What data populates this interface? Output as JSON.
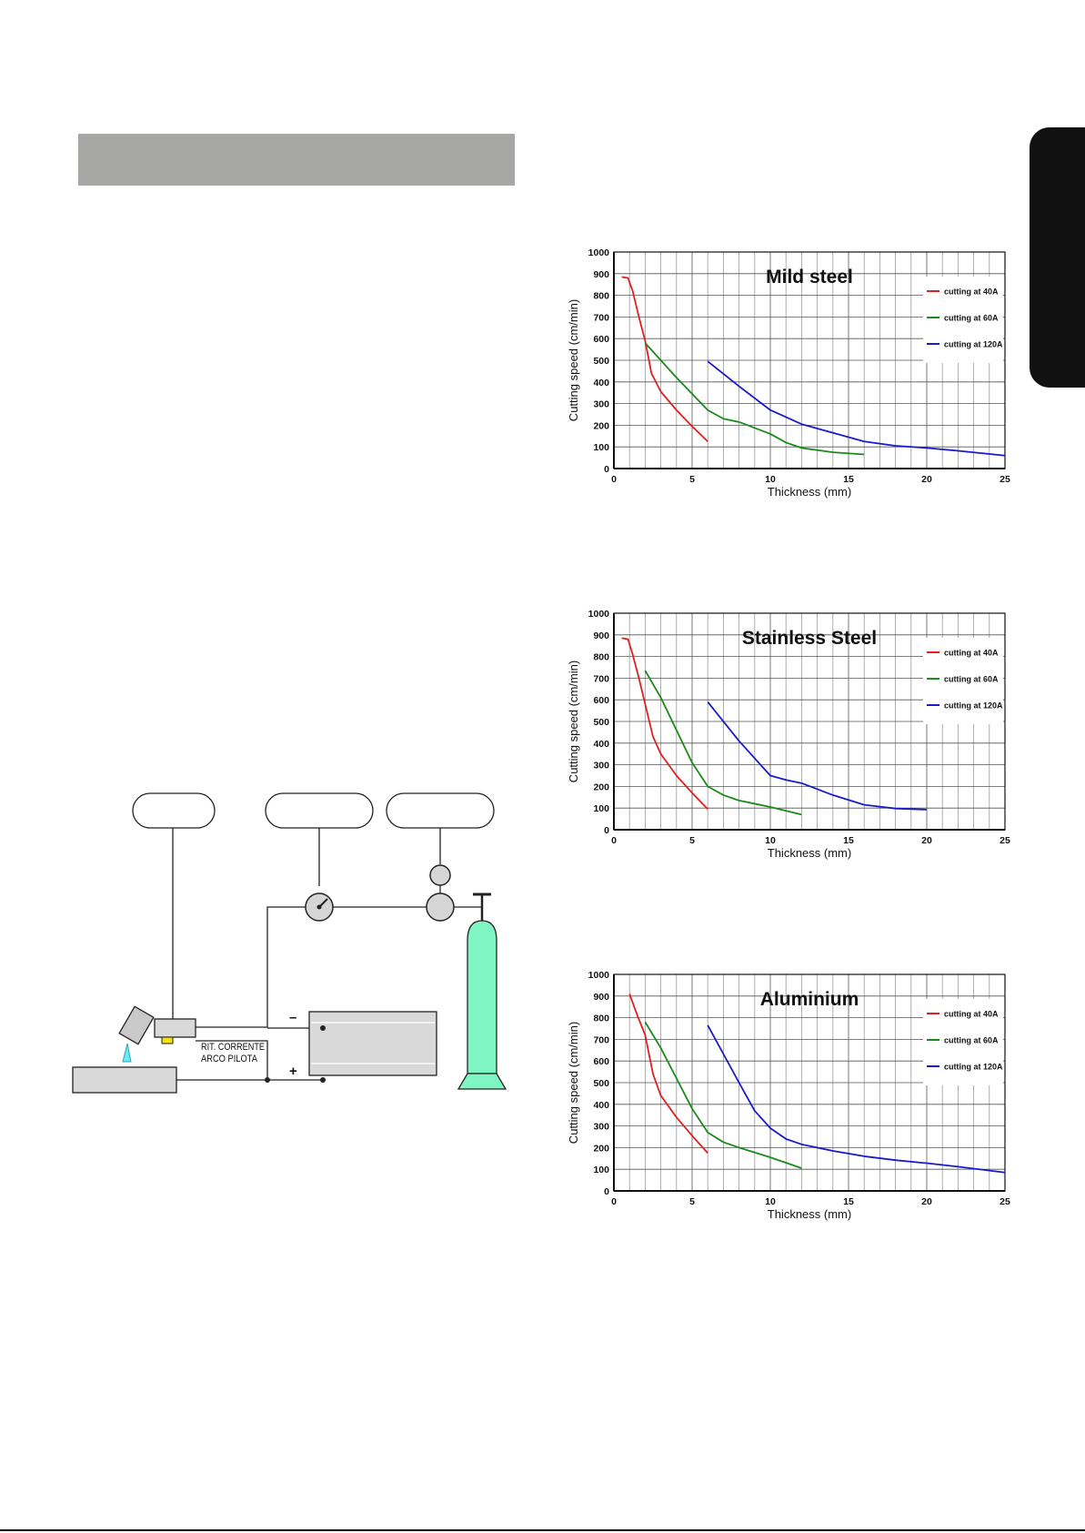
{
  "diagram": {
    "label_line1": "RIT. CORRENTE",
    "label_line2": "ARCO PILOTA",
    "minus_sign": "–",
    "plus_sign": "+",
    "gas_color": "#7ff5c4"
  },
  "chart_data": [
    {
      "type": "line",
      "title": "Mild steel",
      "xlabel": "Thickness (mm)",
      "ylabel": "Cutting speed (cm/min)",
      "xlim": [
        0,
        25
      ],
      "ylim": [
        0,
        1000
      ],
      "xticks": [
        "0",
        "5",
        "10",
        "15",
        "20",
        "25"
      ],
      "yticks": [
        "0",
        "100",
        "200",
        "300",
        "400",
        "500",
        "600",
        "700",
        "800",
        "900",
        "1000"
      ],
      "grid": true,
      "legend_position": "top-right",
      "series": [
        {
          "name": "cutting at 40A",
          "color": "#e02020",
          "x": [
            0.5,
            0.9,
            1.2,
            1.6,
            2.0,
            2.4,
            3.0,
            4.0,
            5.0,
            6.0
          ],
          "y": [
            885,
            880,
            820,
            700,
            590,
            440,
            355,
            270,
            195,
            125
          ]
        },
        {
          "name": "cutting at 60A",
          "color": "#1a8a1a",
          "x": [
            2.0,
            3.0,
            4.0,
            5.0,
            6.0,
            7.0,
            8.0,
            10.0,
            11.0,
            12.0,
            14.0,
            16.0
          ],
          "y": [
            580,
            500,
            420,
            345,
            270,
            230,
            215,
            160,
            120,
            95,
            75,
            65
          ]
        },
        {
          "name": "cutting at 120A",
          "color": "#1a1acc",
          "x": [
            6.0,
            8.0,
            10.0,
            12.0,
            14.0,
            16.0,
            18.0,
            20.0,
            22.0,
            25.0
          ],
          "y": [
            495,
            380,
            270,
            205,
            165,
            125,
            105,
            95,
            82,
            60
          ]
        }
      ]
    },
    {
      "type": "line",
      "title": "Stainless Steel",
      "xlabel": "Thickness (mm)",
      "ylabel": "Cutting speed (cm/min)",
      "xlim": [
        0,
        25
      ],
      "ylim": [
        0,
        1000
      ],
      "xticks": [
        "0",
        "5",
        "10",
        "15",
        "20",
        "25"
      ],
      "yticks": [
        "0",
        "100",
        "200",
        "300",
        "400",
        "500",
        "600",
        "700",
        "800",
        "900",
        "1000"
      ],
      "grid": true,
      "legend_position": "top-right",
      "series": [
        {
          "name": "cutting at 40A",
          "color": "#e02020",
          "x": [
            0.5,
            0.9,
            1.2,
            1.6,
            2.0,
            2.5,
            3.0,
            4.0,
            5.0,
            6.0
          ],
          "y": [
            885,
            880,
            810,
            700,
            580,
            430,
            350,
            250,
            170,
            95
          ]
        },
        {
          "name": "cutting at 60A",
          "color": "#1a8a1a",
          "x": [
            2.0,
            3.0,
            4.0,
            5.0,
            6.0,
            7.0,
            8.0,
            9.0,
            10.0,
            12.0
          ],
          "y": [
            735,
            610,
            460,
            310,
            200,
            160,
            135,
            120,
            105,
            70
          ]
        },
        {
          "name": "cutting at 120A",
          "color": "#1a1acc",
          "x": [
            6.0,
            8.0,
            10.0,
            11.0,
            12.0,
            14.0,
            16.0,
            18.0,
            20.0
          ],
          "y": [
            590,
            410,
            250,
            230,
            215,
            160,
            115,
            98,
            93
          ]
        }
      ]
    },
    {
      "type": "line",
      "title": "Aluminium",
      "xlabel": "Thickness (mm)",
      "ylabel": "Cutting speed (cm/min)",
      "xlim": [
        0,
        25
      ],
      "ylim": [
        0,
        1000
      ],
      "xticks": [
        "0",
        "5",
        "10",
        "15",
        "20",
        "25"
      ],
      "yticks": [
        "0",
        "100",
        "200",
        "300",
        "400",
        "500",
        "600",
        "700",
        "800",
        "900",
        "1000"
      ],
      "grid": true,
      "legend_position": "top-right",
      "series": [
        {
          "name": "cutting at 40A",
          "color": "#e02020",
          "x": [
            1.0,
            1.5,
            2.0,
            2.5,
            3.0,
            4.0,
            5.0,
            6.0
          ],
          "y": [
            910,
            810,
            720,
            540,
            440,
            340,
            255,
            175
          ]
        },
        {
          "name": "cutting at 60A",
          "color": "#1a8a1a",
          "x": [
            2.0,
            3.0,
            4.0,
            5.0,
            6.0,
            7.0,
            8.0,
            10.0,
            12.0
          ],
          "y": [
            780,
            660,
            520,
            380,
            270,
            225,
            200,
            155,
            105
          ]
        },
        {
          "name": "cutting at 120A",
          "color": "#1a1acc",
          "x": [
            6.0,
            8.0,
            9.0,
            10.0,
            11.0,
            12.0,
            14.0,
            16.0,
            18.0,
            20.0,
            22.0,
            25.0
          ],
          "y": [
            765,
            500,
            370,
            290,
            240,
            215,
            185,
            160,
            142,
            128,
            112,
            85
          ]
        }
      ]
    }
  ]
}
